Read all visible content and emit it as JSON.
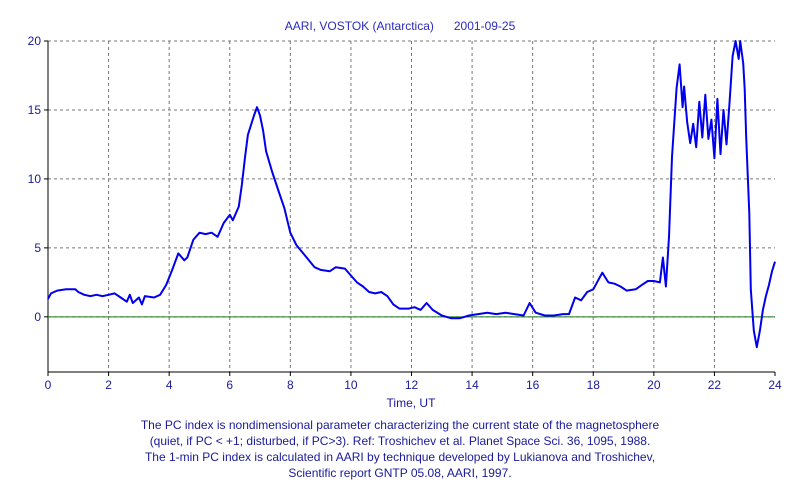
{
  "chart_data": {
    "type": "line",
    "title": "AARI, VOSTOK (Antarctica)      2001-09-25",
    "xlabel": "Time, UT",
    "ylabel": "",
    "xlim": [
      0,
      24
    ],
    "ylim": [
      -4,
      20
    ],
    "x_ticks": [
      "0",
      "2",
      "4",
      "6",
      "8",
      "10",
      "12",
      "14",
      "16",
      "18",
      "20",
      "22",
      "24"
    ],
    "y_ticks": [
      "20",
      "15",
      "10",
      "5",
      "0"
    ],
    "grid": true,
    "reference_line": {
      "y": 0,
      "color": "#1a7a1a"
    },
    "series": [
      {
        "color": "#0000ee",
        "points": [
          [
            0.0,
            1.3
          ],
          [
            0.1,
            1.7
          ],
          [
            0.3,
            1.9
          ],
          [
            0.6,
            2.0
          ],
          [
            0.9,
            2.0
          ],
          [
            1.0,
            1.8
          ],
          [
            1.2,
            1.6
          ],
          [
            1.4,
            1.5
          ],
          [
            1.6,
            1.6
          ],
          [
            1.8,
            1.5
          ],
          [
            2.0,
            1.6
          ],
          [
            2.2,
            1.7
          ],
          [
            2.4,
            1.4
          ],
          [
            2.6,
            1.1
          ],
          [
            2.7,
            1.6
          ],
          [
            2.8,
            1.0
          ],
          [
            3.0,
            1.4
          ],
          [
            3.1,
            0.9
          ],
          [
            3.2,
            1.5
          ],
          [
            3.5,
            1.4
          ],
          [
            3.7,
            1.6
          ],
          [
            3.9,
            2.3
          ],
          [
            4.1,
            3.4
          ],
          [
            4.3,
            4.6
          ],
          [
            4.5,
            4.1
          ],
          [
            4.6,
            4.3
          ],
          [
            4.8,
            5.6
          ],
          [
            5.0,
            6.1
          ],
          [
            5.2,
            6.0
          ],
          [
            5.4,
            6.1
          ],
          [
            5.6,
            5.8
          ],
          [
            5.8,
            6.8
          ],
          [
            6.0,
            7.4
          ],
          [
            6.1,
            7.0
          ],
          [
            6.3,
            8.0
          ],
          [
            6.4,
            9.6
          ],
          [
            6.5,
            11.5
          ],
          [
            6.6,
            13.2
          ],
          [
            6.8,
            14.6
          ],
          [
            6.9,
            15.2
          ],
          [
            7.0,
            14.6
          ],
          [
            7.1,
            13.5
          ],
          [
            7.2,
            12.0
          ],
          [
            7.4,
            10.5
          ],
          [
            7.6,
            9.2
          ],
          [
            7.8,
            7.9
          ],
          [
            8.0,
            6.1
          ],
          [
            8.2,
            5.2
          ],
          [
            8.5,
            4.4
          ],
          [
            8.8,
            3.6
          ],
          [
            9.0,
            3.4
          ],
          [
            9.3,
            3.3
          ],
          [
            9.5,
            3.6
          ],
          [
            9.8,
            3.5
          ],
          [
            10.0,
            3.0
          ],
          [
            10.2,
            2.5
          ],
          [
            10.4,
            2.2
          ],
          [
            10.6,
            1.8
          ],
          [
            10.8,
            1.7
          ],
          [
            11.0,
            1.8
          ],
          [
            11.2,
            1.5
          ],
          [
            11.4,
            0.9
          ],
          [
            11.6,
            0.6
          ],
          [
            11.9,
            0.6
          ],
          [
            12.1,
            0.7
          ],
          [
            12.3,
            0.5
          ],
          [
            12.5,
            1.0
          ],
          [
            12.7,
            0.5
          ],
          [
            13.0,
            0.1
          ],
          [
            13.3,
            -0.1
          ],
          [
            13.6,
            -0.1
          ],
          [
            13.9,
            0.1
          ],
          [
            14.2,
            0.2
          ],
          [
            14.5,
            0.3
          ],
          [
            14.8,
            0.2
          ],
          [
            15.1,
            0.3
          ],
          [
            15.4,
            0.2
          ],
          [
            15.7,
            0.1
          ],
          [
            15.9,
            1.0
          ],
          [
            16.1,
            0.3
          ],
          [
            16.4,
            0.1
          ],
          [
            16.7,
            0.1
          ],
          [
            17.0,
            0.2
          ],
          [
            17.2,
            0.2
          ],
          [
            17.4,
            1.4
          ],
          [
            17.6,
            1.2
          ],
          [
            17.8,
            1.8
          ],
          [
            18.0,
            2.0
          ],
          [
            18.2,
            2.8
          ],
          [
            18.3,
            3.2
          ],
          [
            18.5,
            2.5
          ],
          [
            18.7,
            2.4
          ],
          [
            18.9,
            2.2
          ],
          [
            19.1,
            1.9
          ],
          [
            19.4,
            2.0
          ],
          [
            19.6,
            2.3
          ],
          [
            19.8,
            2.6
          ],
          [
            20.0,
            2.6
          ],
          [
            20.2,
            2.5
          ],
          [
            20.3,
            4.3
          ],
          [
            20.4,
            2.2
          ],
          [
            20.5,
            5.8
          ],
          [
            20.6,
            11.6
          ],
          [
            20.75,
            16.6
          ],
          [
            20.85,
            18.3
          ],
          [
            20.95,
            15.2
          ],
          [
            21.0,
            16.7
          ],
          [
            21.1,
            14.1
          ],
          [
            21.2,
            12.6
          ],
          [
            21.3,
            14.0
          ],
          [
            21.4,
            12.3
          ],
          [
            21.5,
            15.6
          ],
          [
            21.6,
            13.0
          ],
          [
            21.7,
            16.1
          ],
          [
            21.8,
            12.9
          ],
          [
            21.9,
            14.3
          ],
          [
            22.0,
            11.5
          ],
          [
            22.1,
            15.8
          ],
          [
            22.2,
            11.8
          ],
          [
            22.3,
            15.0
          ],
          [
            22.4,
            12.5
          ],
          [
            22.5,
            15.6
          ],
          [
            22.6,
            18.9
          ],
          [
            22.7,
            20.0
          ],
          [
            22.8,
            18.7
          ],
          [
            22.85,
            20.0
          ],
          [
            22.95,
            18.4
          ],
          [
            23.0,
            16.5
          ],
          [
            23.05,
            13.0
          ],
          [
            23.15,
            7.5
          ],
          [
            23.2,
            2.0
          ],
          [
            23.3,
            -1.0
          ],
          [
            23.4,
            -2.2
          ],
          [
            23.5,
            -1.0
          ],
          [
            23.6,
            0.5
          ],
          [
            23.7,
            1.5
          ],
          [
            23.8,
            2.3
          ],
          [
            23.9,
            3.3
          ],
          [
            24.0,
            4.0
          ]
        ]
      }
    ],
    "footnote": [
      "The PC index is nondimensional parameter characterizing the current state of the magnetosphere",
      "(quiet, if PC < +1; disturbed, if PC>3).  Ref: Troshichev et al. Planet Space Sci. 36, 1095, 1988.",
      "The 1-min PC index is calculated in AARI by technique developed by Lukianova and Troshichev,",
      "Scientific report GNTP 05.08, AARI, 1997."
    ]
  }
}
